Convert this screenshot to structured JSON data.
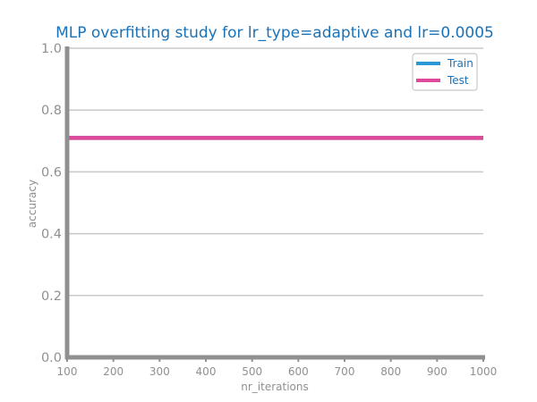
{
  "chart_data": {
    "type": "line",
    "title": "MLP overfitting study for lr_type=adaptive and lr=0.0005",
    "xlabel": "nr_iterations",
    "ylabel": "accuracy",
    "x": [
      100,
      200,
      300,
      400,
      500,
      600,
      700,
      800,
      900,
      1000
    ],
    "x_ticks": [
      "100",
      "200",
      "300",
      "400",
      "500",
      "600",
      "700",
      "800",
      "900",
      "1000"
    ],
    "y_ticks": [
      "0.0",
      "0.2",
      "0.4",
      "0.6",
      "0.8",
      "1.0"
    ],
    "xlim": [
      100,
      1000
    ],
    "ylim": [
      0,
      1
    ],
    "grid": "horizontal",
    "legend_position": "top-right",
    "series": [
      {
        "name": "Train",
        "color": "#2a98d4",
        "values": [
          0.71,
          0.71,
          0.71,
          0.71,
          0.71,
          0.71,
          0.71,
          0.71,
          0.71,
          0.71
        ]
      },
      {
        "name": "Test",
        "color": "#e0489a",
        "values": [
          0.71,
          0.71,
          0.71,
          0.71,
          0.71,
          0.71,
          0.71,
          0.71,
          0.71,
          0.71
        ]
      }
    ],
    "colors": {
      "title": "#1a72b8",
      "axis": "#909090",
      "grid": "#c8c8c8",
      "tick_text": "#909090"
    }
  }
}
